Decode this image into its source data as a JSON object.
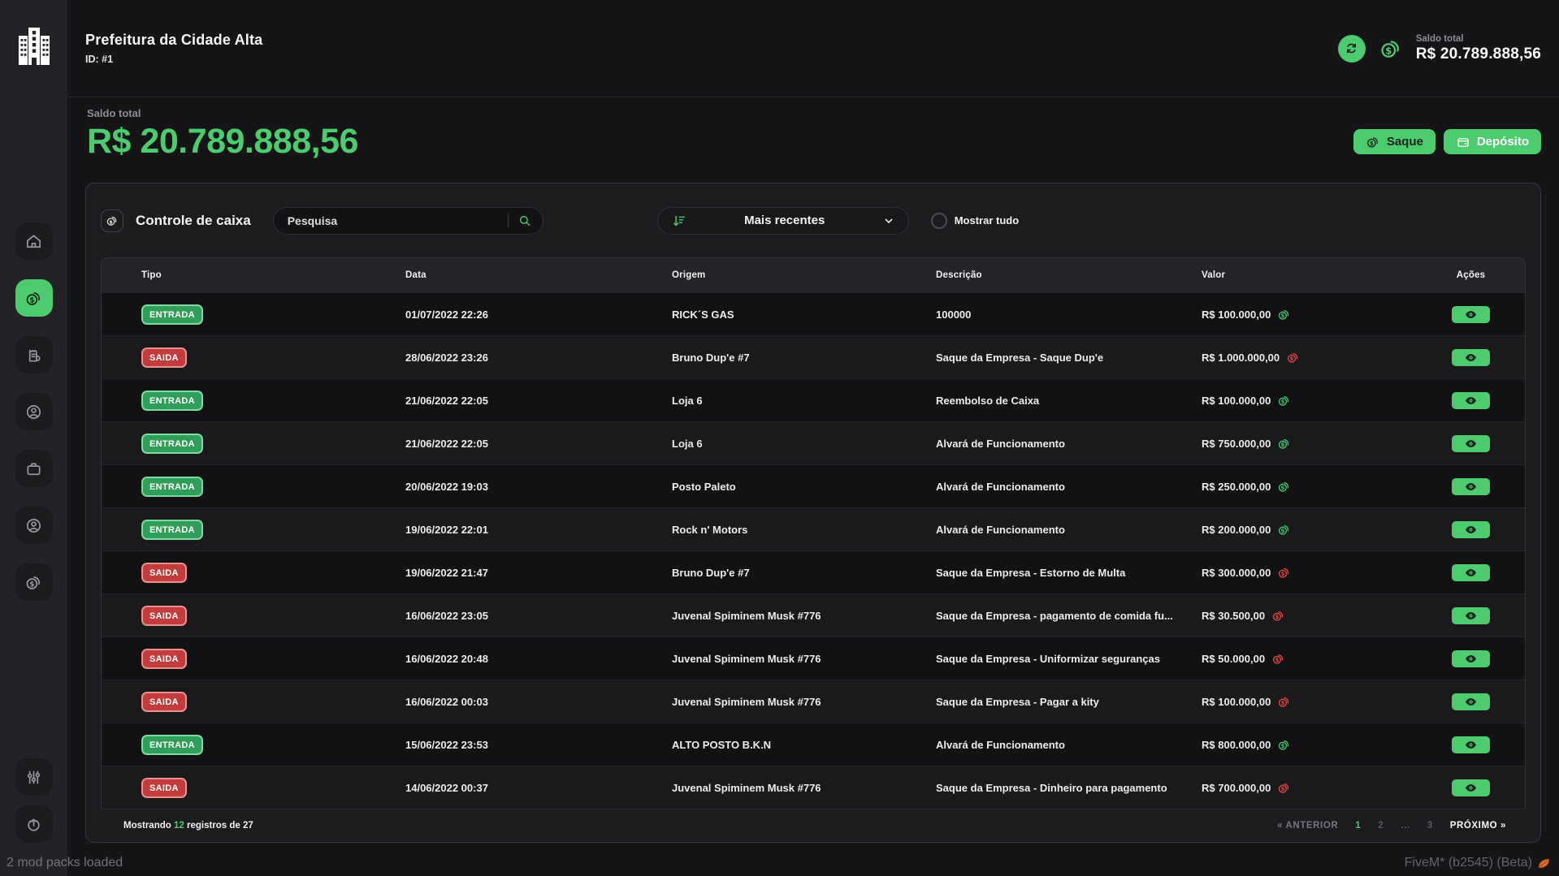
{
  "header": {
    "title": "Prefeitura da Cidade Alta",
    "id_label": "ID: #1",
    "balance_label": "Saldo total",
    "balance_value": "R$ 20.789.888,56"
  },
  "balance": {
    "label": "Saldo total",
    "value": "R$ 20.789.888,56",
    "withdraw_label": "Saque",
    "deposit_label": "Depósito"
  },
  "sidebar": {
    "items": [
      {
        "name": "sidebar-item-home",
        "icon": "home-icon",
        "active": false,
        "group": "top"
      },
      {
        "name": "sidebar-item-cash-control",
        "icon": "coins-icon",
        "active": true,
        "group": "top"
      },
      {
        "name": "sidebar-item-receipts",
        "icon": "receipt-icon",
        "active": false,
        "group": "top"
      },
      {
        "name": "sidebar-item-employees",
        "icon": "user-icon",
        "active": false,
        "group": "top"
      },
      {
        "name": "sidebar-item-briefcase",
        "icon": "briefcase-icon",
        "active": false,
        "group": "top"
      },
      {
        "name": "sidebar-item-citizens",
        "icon": "user-icon",
        "active": false,
        "group": "top"
      },
      {
        "name": "sidebar-item-finance",
        "icon": "coins-icon",
        "active": false,
        "group": "top"
      },
      {
        "name": "sidebar-item-settings",
        "icon": "sliders-icon",
        "active": false,
        "group": "bottom"
      },
      {
        "name": "sidebar-item-exit",
        "icon": "power-icon",
        "active": false,
        "group": "bottom"
      }
    ]
  },
  "panel": {
    "title": "Controle de caixa",
    "search_placeholder": "Pesquisa",
    "sort_label": "Mais recentes",
    "show_all_label": "Mostrar tudo",
    "table": {
      "columns": [
        "Tipo",
        "Data",
        "Origem",
        "Descrição",
        "Valor",
        "Ações"
      ],
      "rows": [
        {
          "type": "ENTRADA",
          "direction": "in",
          "date": "01/07/2022 22:26",
          "origin": "RICK´S GAS",
          "description": "100000",
          "value": "R$ 100.000,00"
        },
        {
          "type": "SAIDA",
          "direction": "out",
          "date": "28/06/2022 23:26",
          "origin": "Bruno Dup'e #7",
          "description": "Saque da Empresa - Saque Dup'e",
          "value": "R$ 1.000.000,00"
        },
        {
          "type": "ENTRADA",
          "direction": "in",
          "date": "21/06/2022 22:05",
          "origin": "Loja 6",
          "description": "Reembolso de Caixa",
          "value": "R$ 100.000,00"
        },
        {
          "type": "ENTRADA",
          "direction": "in",
          "date": "21/06/2022 22:05",
          "origin": "Loja 6",
          "description": "Alvará de Funcionamento",
          "value": "R$ 750.000,00"
        },
        {
          "type": "ENTRADA",
          "direction": "in",
          "date": "20/06/2022 19:03",
          "origin": "Posto Paleto",
          "description": "Alvará de Funcionamento",
          "value": "R$ 250.000,00"
        },
        {
          "type": "ENTRADA",
          "direction": "in",
          "date": "19/06/2022 22:01",
          "origin": "Rock n' Motors",
          "description": "Alvará de Funcionamento",
          "value": "R$ 200.000,00"
        },
        {
          "type": "SAIDA",
          "direction": "out",
          "date": "19/06/2022 21:47",
          "origin": "Bruno Dup'e #7",
          "description": "Saque da Empresa - Estorno de Multa",
          "value": "R$ 300.000,00"
        },
        {
          "type": "SAIDA",
          "direction": "out",
          "date": "16/06/2022 23:05",
          "origin": "Juvenal Spiminem Musk #776",
          "description": "Saque da Empresa - pagamento de comida fu...",
          "value": "R$ 30.500,00"
        },
        {
          "type": "SAIDA",
          "direction": "out",
          "date": "16/06/2022 20:48",
          "origin": "Juvenal Spiminem Musk #776",
          "description": "Saque da Empresa - Uniformizar seguranças",
          "value": "R$ 50.000,00"
        },
        {
          "type": "SAIDA",
          "direction": "out",
          "date": "16/06/2022 00:03",
          "origin": "Juvenal Spiminem Musk #776",
          "description": "Saque da Empresa - Pagar a kity",
          "value": "R$ 100.000,00"
        },
        {
          "type": "ENTRADA",
          "direction": "in",
          "date": "15/06/2022 23:53",
          "origin": "ALTO POSTO B.K.N",
          "description": "Alvará de Funcionamento",
          "value": "R$ 800.000,00"
        },
        {
          "type": "SAIDA",
          "direction": "out",
          "date": "14/06/2022 00:37",
          "origin": "Juvenal Spiminem Musk #776",
          "description": "Saque da Empresa - Dinheiro para pagamento",
          "value": "R$ 700.000,00"
        }
      ]
    },
    "footer": {
      "showing_prefix": "Mostrando",
      "showing_count": "12",
      "showing_suffix": "registros de 27",
      "prev_label": "« ANTERIOR",
      "next_label": "PRÓXIMO »",
      "pages": [
        {
          "label": "1",
          "active": true
        },
        {
          "label": "2",
          "active": false
        },
        {
          "label": "...",
          "active": false
        },
        {
          "label": "3",
          "active": false
        }
      ]
    }
  },
  "statusbar": {
    "left": "2 mod packs loaded",
    "right": "FiveM* (b2545) (Beta)"
  },
  "colors": {
    "accent_green": "#4ccb6f",
    "entry_badge_green": "#2f9e58",
    "exit_badge_red": "#c23c3c",
    "value_out_red": "#eb4747"
  }
}
